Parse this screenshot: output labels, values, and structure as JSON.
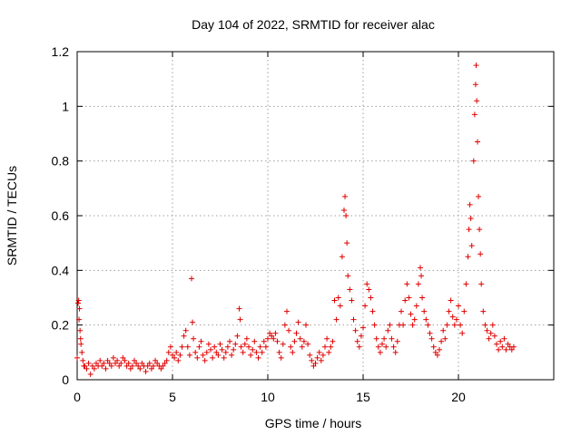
{
  "chart_data": {
    "type": "scatter",
    "title": "Day 104 of 2022, SRMTID for receiver alac",
    "xlabel": "GPS time / hours",
    "ylabel": "SRMTID / TECUs",
    "xlim": [
      0,
      25
    ],
    "ylim": [
      0,
      1.2
    ],
    "x_ticks": [
      0,
      5,
      10,
      15,
      20
    ],
    "x_tick_labels": [
      "0",
      "5",
      "10",
      "15",
      "20"
    ],
    "y_ticks": [
      0,
      0.2,
      0.4,
      0.6,
      0.8,
      1.0,
      1.2
    ],
    "y_tick_labels": [
      "0",
      "0.2",
      "0.4",
      "0.6",
      "0.8",
      "1",
      "1.2"
    ],
    "grid": true,
    "marker": "+",
    "color": "#e00000",
    "series": [
      {
        "name": "alac",
        "points": [
          [
            0.0,
            0.08
          ],
          [
            0.05,
            0.28
          ],
          [
            0.08,
            0.29
          ],
          [
            0.1,
            0.22
          ],
          [
            0.12,
            0.26
          ],
          [
            0.15,
            0.18
          ],
          [
            0.18,
            0.15
          ],
          [
            0.2,
            0.13
          ],
          [
            0.25,
            0.1
          ],
          [
            0.3,
            0.07
          ],
          [
            0.35,
            0.05
          ],
          [
            0.4,
            0.05
          ],
          [
            0.5,
            0.04
          ],
          [
            0.6,
            0.06
          ],
          [
            0.7,
            0.02
          ],
          [
            0.8,
            0.05
          ],
          [
            0.9,
            0.04
          ],
          [
            1.0,
            0.06
          ],
          [
            1.1,
            0.05
          ],
          [
            1.2,
            0.07
          ],
          [
            1.3,
            0.05
          ],
          [
            1.4,
            0.06
          ],
          [
            1.5,
            0.04
          ],
          [
            1.6,
            0.07
          ],
          [
            1.7,
            0.06
          ],
          [
            1.8,
            0.05
          ],
          [
            1.9,
            0.08
          ],
          [
            2.0,
            0.06
          ],
          [
            2.1,
            0.07
          ],
          [
            2.2,
            0.05
          ],
          [
            2.3,
            0.06
          ],
          [
            2.4,
            0.08
          ],
          [
            2.5,
            0.07
          ],
          [
            2.6,
            0.05
          ],
          [
            2.7,
            0.06
          ],
          [
            2.8,
            0.04
          ],
          [
            2.9,
            0.05
          ],
          [
            3.0,
            0.07
          ],
          [
            3.1,
            0.06
          ],
          [
            3.2,
            0.05
          ],
          [
            3.3,
            0.04
          ],
          [
            3.4,
            0.06
          ],
          [
            3.5,
            0.05
          ],
          [
            3.6,
            0.03
          ],
          [
            3.7,
            0.05
          ],
          [
            3.8,
            0.06
          ],
          [
            3.9,
            0.04
          ],
          [
            4.0,
            0.05
          ],
          [
            4.1,
            0.07
          ],
          [
            4.2,
            0.06
          ],
          [
            4.3,
            0.05
          ],
          [
            4.4,
            0.04
          ],
          [
            4.5,
            0.05
          ],
          [
            4.6,
            0.06
          ],
          [
            4.7,
            0.07
          ],
          [
            4.8,
            0.1
          ],
          [
            4.9,
            0.12
          ],
          [
            5.0,
            0.09
          ],
          [
            5.1,
            0.08
          ],
          [
            5.2,
            0.1
          ],
          [
            5.3,
            0.07
          ],
          [
            5.4,
            0.09
          ],
          [
            5.5,
            0.12
          ],
          [
            5.6,
            0.16
          ],
          [
            5.7,
            0.18
          ],
          [
            5.8,
            0.12
          ],
          [
            5.9,
            0.09
          ],
          [
            6.0,
            0.37
          ],
          [
            6.05,
            0.21
          ],
          [
            6.1,
            0.15
          ],
          [
            6.2,
            0.1
          ],
          [
            6.3,
            0.08
          ],
          [
            6.4,
            0.12
          ],
          [
            6.5,
            0.14
          ],
          [
            6.6,
            0.09
          ],
          [
            6.7,
            0.07
          ],
          [
            6.8,
            0.1
          ],
          [
            6.9,
            0.13
          ],
          [
            7.0,
            0.11
          ],
          [
            7.1,
            0.08
          ],
          [
            7.2,
            0.12
          ],
          [
            7.3,
            0.1
          ],
          [
            7.4,
            0.09
          ],
          [
            7.5,
            0.13
          ],
          [
            7.6,
            0.11
          ],
          [
            7.7,
            0.08
          ],
          [
            7.8,
            0.1
          ],
          [
            7.9,
            0.12
          ],
          [
            8.0,
            0.14
          ],
          [
            8.1,
            0.09
          ],
          [
            8.2,
            0.11
          ],
          [
            8.3,
            0.13
          ],
          [
            8.4,
            0.16
          ],
          [
            8.5,
            0.26
          ],
          [
            8.55,
            0.22
          ],
          [
            8.6,
            0.12
          ],
          [
            8.7,
            0.1
          ],
          [
            8.8,
            0.13
          ],
          [
            8.9,
            0.15
          ],
          [
            9.0,
            0.12
          ],
          [
            9.1,
            0.09
          ],
          [
            9.2,
            0.11
          ],
          [
            9.3,
            0.14
          ],
          [
            9.4,
            0.1
          ],
          [
            9.5,
            0.08
          ],
          [
            9.6,
            0.12
          ],
          [
            9.7,
            0.1
          ],
          [
            9.8,
            0.14
          ],
          [
            9.9,
            0.12
          ],
          [
            10.0,
            0.15
          ],
          [
            10.1,
            0.17
          ],
          [
            10.2,
            0.16
          ],
          [
            10.3,
            0.15
          ],
          [
            10.4,
            0.17
          ],
          [
            10.5,
            0.14
          ],
          [
            10.6,
            0.1
          ],
          [
            10.7,
            0.08
          ],
          [
            10.8,
            0.13
          ],
          [
            10.9,
            0.2
          ],
          [
            11.0,
            0.25
          ],
          [
            11.1,
            0.18
          ],
          [
            11.2,
            0.12
          ],
          [
            11.3,
            0.1
          ],
          [
            11.4,
            0.14
          ],
          [
            11.5,
            0.17
          ],
          [
            11.6,
            0.21
          ],
          [
            11.7,
            0.15
          ],
          [
            11.8,
            0.12
          ],
          [
            11.9,
            0.14
          ],
          [
            12.0,
            0.2
          ],
          [
            12.1,
            0.13
          ],
          [
            12.2,
            0.09
          ],
          [
            12.3,
            0.07
          ],
          [
            12.4,
            0.05
          ],
          [
            12.5,
            0.06
          ],
          [
            12.6,
            0.08
          ],
          [
            12.7,
            0.1
          ],
          [
            12.8,
            0.07
          ],
          [
            12.9,
            0.09
          ],
          [
            13.0,
            0.12
          ],
          [
            13.1,
            0.15
          ],
          [
            13.2,
            0.1
          ],
          [
            13.3,
            0.12
          ],
          [
            13.4,
            0.14
          ],
          [
            13.5,
            0.29
          ],
          [
            13.6,
            0.22
          ],
          [
            13.7,
            0.3
          ],
          [
            13.8,
            0.27
          ],
          [
            13.9,
            0.45
          ],
          [
            14.0,
            0.62
          ],
          [
            14.05,
            0.67
          ],
          [
            14.1,
            0.6
          ],
          [
            14.15,
            0.5
          ],
          [
            14.2,
            0.38
          ],
          [
            14.3,
            0.33
          ],
          [
            14.4,
            0.29
          ],
          [
            14.5,
            0.22
          ],
          [
            14.6,
            0.18
          ],
          [
            14.7,
            0.14
          ],
          [
            14.8,
            0.12
          ],
          [
            14.9,
            0.16
          ],
          [
            15.0,
            0.19
          ],
          [
            15.1,
            0.27
          ],
          [
            15.2,
            0.35
          ],
          [
            15.3,
            0.33
          ],
          [
            15.4,
            0.3
          ],
          [
            15.5,
            0.25
          ],
          [
            15.6,
            0.2
          ],
          [
            15.7,
            0.15
          ],
          [
            15.8,
            0.12
          ],
          [
            15.9,
            0.1
          ],
          [
            16.0,
            0.13
          ],
          [
            16.1,
            0.15
          ],
          [
            16.2,
            0.12
          ],
          [
            16.3,
            0.18
          ],
          [
            16.4,
            0.2
          ],
          [
            16.5,
            0.15
          ],
          [
            16.6,
            0.12
          ],
          [
            16.7,
            0.1
          ],
          [
            16.8,
            0.14
          ],
          [
            16.9,
            0.2
          ],
          [
            17.0,
            0.25
          ],
          [
            17.1,
            0.2
          ],
          [
            17.2,
            0.29
          ],
          [
            17.3,
            0.35
          ],
          [
            17.4,
            0.3
          ],
          [
            17.5,
            0.24
          ],
          [
            17.6,
            0.2
          ],
          [
            17.7,
            0.22
          ],
          [
            17.8,
            0.27
          ],
          [
            17.9,
            0.35
          ],
          [
            18.0,
            0.41
          ],
          [
            18.05,
            0.38
          ],
          [
            18.1,
            0.3
          ],
          [
            18.2,
            0.25
          ],
          [
            18.3,
            0.22
          ],
          [
            18.4,
            0.2
          ],
          [
            18.5,
            0.17
          ],
          [
            18.6,
            0.15
          ],
          [
            18.7,
            0.12
          ],
          [
            18.8,
            0.1
          ],
          [
            18.9,
            0.09
          ],
          [
            19.0,
            0.11
          ],
          [
            19.1,
            0.14
          ],
          [
            19.2,
            0.18
          ],
          [
            19.3,
            0.15
          ],
          [
            19.4,
            0.2
          ],
          [
            19.5,
            0.25
          ],
          [
            19.6,
            0.29
          ],
          [
            19.7,
            0.23
          ],
          [
            19.8,
            0.2
          ],
          [
            19.9,
            0.22
          ],
          [
            20.0,
            0.27
          ],
          [
            20.1,
            0.2
          ],
          [
            20.2,
            0.17
          ],
          [
            20.3,
            0.25
          ],
          [
            20.4,
            0.35
          ],
          [
            20.5,
            0.45
          ],
          [
            20.55,
            0.55
          ],
          [
            20.6,
            0.64
          ],
          [
            20.65,
            0.59
          ],
          [
            20.7,
            0.49
          ],
          [
            20.8,
            0.8
          ],
          [
            20.85,
            0.97
          ],
          [
            20.9,
            1.08
          ],
          [
            20.93,
            1.15
          ],
          [
            20.96,
            1.02
          ],
          [
            21.0,
            0.87
          ],
          [
            21.05,
            0.67
          ],
          [
            21.1,
            0.55
          ],
          [
            21.15,
            0.46
          ],
          [
            21.2,
            0.35
          ],
          [
            21.3,
            0.25
          ],
          [
            21.4,
            0.2
          ],
          [
            21.5,
            0.18
          ],
          [
            21.6,
            0.15
          ],
          [
            21.7,
            0.17
          ],
          [
            21.8,
            0.2
          ],
          [
            21.9,
            0.16
          ],
          [
            22.0,
            0.13
          ],
          [
            22.1,
            0.11
          ],
          [
            22.2,
            0.14
          ],
          [
            22.3,
            0.12
          ],
          [
            22.4,
            0.15
          ],
          [
            22.5,
            0.11
          ],
          [
            22.6,
            0.13
          ],
          [
            22.7,
            0.12
          ],
          [
            22.8,
            0.11
          ],
          [
            22.9,
            0.12
          ]
        ]
      }
    ]
  }
}
